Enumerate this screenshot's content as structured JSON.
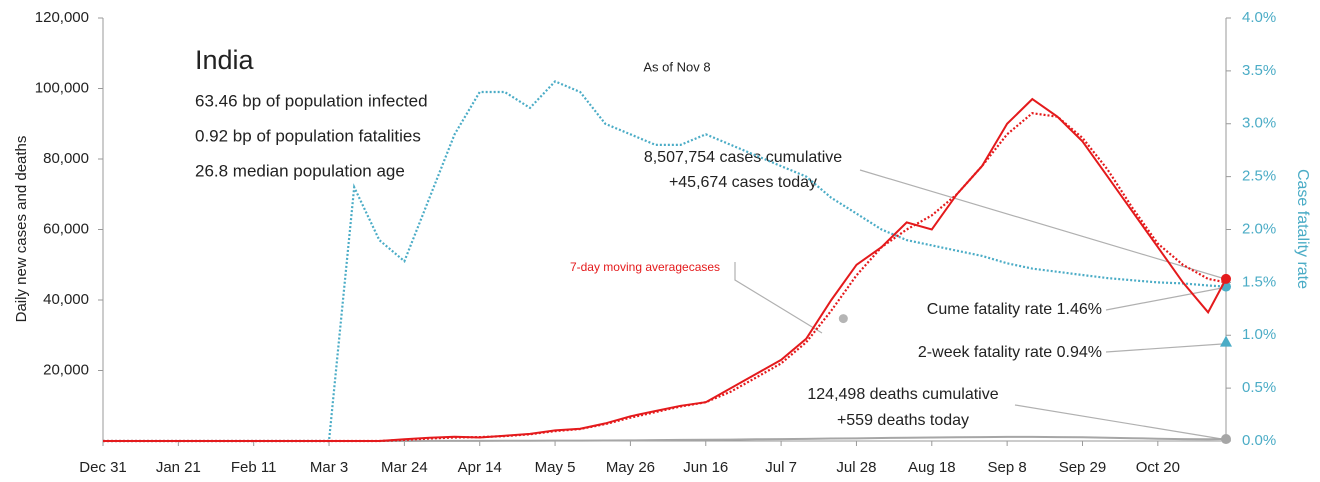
{
  "chart_data": {
    "type": "line",
    "title": "India",
    "subtitle_lines": [
      "63.46 bp of population infected",
      "0.92 bp of population fatalities",
      "26.8 median population age"
    ],
    "as_of": "As of Nov 8",
    "ylabel": "Daily new cases and deaths",
    "y2label": "Case fatality rate",
    "annotations": {
      "cases_cumulative": "8,507,754 cases cumulative",
      "cases_today": "+45,674 cases today",
      "moving_average": "7-day moving averagecases",
      "cume_fatality": "Cume fatality rate 1.46%",
      "two_week_fatality": "2-week fatality rate 0.94%",
      "deaths_cumulative": "124,498 deaths cumulative",
      "deaths_today": "+559 deaths today"
    },
    "two_week_fatality_rate": 0.94,
    "xlim": [
      0,
      313
    ],
    "xticks": [
      {
        "value": 0,
        "label": "Dec 31"
      },
      {
        "value": 21,
        "label": "Jan 21"
      },
      {
        "value": 42,
        "label": "Feb 11"
      },
      {
        "value": 63,
        "label": "Mar 3"
      },
      {
        "value": 84,
        "label": "Mar 24"
      },
      {
        "value": 105,
        "label": "Apr 14"
      },
      {
        "value": 126,
        "label": "May 5"
      },
      {
        "value": 147,
        "label": "May 26"
      },
      {
        "value": 168,
        "label": "Jun 16"
      },
      {
        "value": 189,
        "label": "Jul 7"
      },
      {
        "value": 210,
        "label": "Jul 28"
      },
      {
        "value": 231,
        "label": "Aug 18"
      },
      {
        "value": 252,
        "label": "Sep 8"
      },
      {
        "value": 273,
        "label": "Sep 29"
      },
      {
        "value": 294,
        "label": "Oct 20"
      }
    ],
    "ylim": [
      0,
      120000
    ],
    "yticks": [
      {
        "value": 20000,
        "label": "20,000"
      },
      {
        "value": 40000,
        "label": "40,000"
      },
      {
        "value": 60000,
        "label": "60,000"
      },
      {
        "value": 80000,
        "label": "80,000"
      },
      {
        "value": 100000,
        "label": "100,000"
      },
      {
        "value": 120000,
        "label": "120,000"
      }
    ],
    "y2lim": [
      0,
      4
    ],
    "y2ticks": [
      {
        "value": 0,
        "label": "0.0%"
      },
      {
        "value": 0.5,
        "label": "0.5%"
      },
      {
        "value": 1,
        "label": "1.0%"
      },
      {
        "value": 1.5,
        "label": "1.5%"
      },
      {
        "value": 2,
        "label": "2.0%"
      },
      {
        "value": 2.5,
        "label": "2.5%"
      },
      {
        "value": 3,
        "label": "3.0%"
      },
      {
        "value": 3.5,
        "label": "3.5%"
      },
      {
        "value": 4,
        "label": "4.0%"
      }
    ],
    "x": [
      0,
      7,
      14,
      21,
      28,
      35,
      42,
      49,
      56,
      63,
      70,
      77,
      84,
      91,
      98,
      105,
      112,
      119,
      126,
      133,
      140,
      147,
      154,
      161,
      168,
      175,
      182,
      189,
      196,
      203,
      210,
      217,
      224,
      231,
      238,
      245,
      252,
      259,
      266,
      273,
      280,
      287,
      294,
      301,
      308,
      313
    ],
    "series": [
      {
        "color": "#e41a1c",
        "style": "solid",
        "end_marker": true,
        "values": [
          0,
          0,
          0,
          0,
          0,
          0,
          0,
          0,
          0,
          0,
          0,
          0,
          500,
          900,
          1200,
          1000,
          1500,
          2000,
          3000,
          3500,
          5000,
          7000,
          8500,
          10000,
          11000,
          15000,
          19000,
          23000,
          29000,
          40000,
          50000,
          55000,
          62000,
          60000,
          70000,
          78000,
          90000,
          97000,
          92000,
          85000,
          75000,
          65000,
          55000,
          45000,
          36500,
          46000
        ]
      },
      {
        "color": "#e41a1c",
        "style": "dotted",
        "end_marker": false,
        "values": [
          0,
          0,
          0,
          0,
          0,
          0,
          0,
          0,
          0,
          0,
          0,
          0,
          300,
          700,
          1000,
          1100,
          1400,
          1900,
          2800,
          3400,
          4800,
          6600,
          8200,
          9800,
          11000,
          14000,
          18000,
          22000,
          28000,
          37000,
          47000,
          55000,
          60000,
          64000,
          70000,
          78000,
          87000,
          93000,
          92000,
          86000,
          77000,
          66000,
          56000,
          50000,
          46000,
          45000
        ]
      },
      {
        "color": "#a6a6a6",
        "style": "solid",
        "end_marker": true,
        "values": [
          0,
          0,
          0,
          0,
          0,
          0,
          0,
          0,
          0,
          0,
          0,
          0,
          10,
          40,
          40,
          30,
          50,
          80,
          100,
          120,
          150,
          180,
          250,
          300,
          350,
          400,
          480,
          550,
          600,
          700,
          750,
          850,
          950,
          1000,
          1050,
          1100,
          1150,
          1150,
          1100,
          1050,
          950,
          800,
          650,
          550,
          500,
          559
        ]
      },
      {
        "color": "#4bacc6",
        "style": "dotted",
        "axis": "y2",
        "end_marker": true,
        "values": [
          0,
          0,
          0,
          0,
          0,
          0,
          0,
          0,
          0,
          0,
          2.4,
          1.9,
          1.7,
          2.3,
          2.9,
          3.3,
          3.3,
          3.15,
          3.4,
          3.3,
          3.0,
          2.9,
          2.8,
          2.8,
          2.9,
          2.8,
          2.7,
          2.6,
          2.5,
          2.3,
          2.15,
          2.0,
          1.9,
          1.85,
          1.8,
          1.75,
          1.68,
          1.63,
          1.6,
          1.57,
          1.54,
          1.52,
          1.5,
          1.49,
          1.47,
          1.46
        ]
      }
    ]
  }
}
